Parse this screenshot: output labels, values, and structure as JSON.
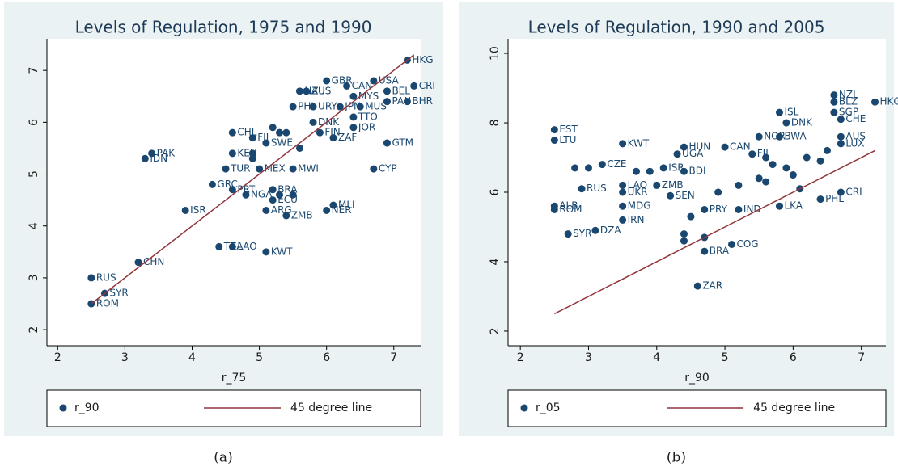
{
  "chart_data": [
    {
      "type": "scatter",
      "title": "Levels of Regulation, 1975 and 1990",
      "xlabel": "r_75",
      "caption": "(a)",
      "xlim": [
        1.84,
        7.4
      ],
      "ylim": [
        1.69,
        7.61
      ],
      "xticks": [
        2,
        3,
        4,
        5,
        6,
        7
      ],
      "yticks": [
        2,
        3,
        4,
        5,
        6,
        7
      ],
      "series": [
        {
          "name": "r_90",
          "color": "#1a476f",
          "x": [
            7.2,
            6.0,
            6.7,
            6.3,
            5.6,
            5.7,
            7.3,
            6.9,
            6.4,
            6.9,
            7.2,
            5.5,
            5.8,
            6.2,
            6.5,
            6.4,
            5.8,
            6.4,
            4.6,
            5.9,
            6.1,
            6.9,
            4.9,
            5.1,
            3.4,
            3.3,
            5.5,
            6.7,
            4.5,
            4.6,
            5.0,
            4.3,
            4.6,
            4.8,
            5.2,
            5.2,
            6.1,
            6.0,
            5.1,
            5.4,
            3.9,
            4.4,
            4.6,
            5.1,
            3.2,
            2.5,
            2.7,
            2.5,
            4.9,
            5.2,
            5.3,
            5.4,
            5.6,
            4.9,
            5.3,
            5.5
          ],
          "values": [
            7.2,
            6.8,
            6.8,
            6.7,
            6.6,
            6.6,
            6.7,
            6.6,
            6.5,
            6.4,
            6.4,
            6.3,
            6.3,
            6.3,
            6.3,
            6.1,
            6.0,
            5.9,
            5.8,
            5.8,
            5.7,
            5.6,
            5.7,
            5.6,
            5.4,
            5.3,
            5.1,
            5.1,
            5.1,
            5.4,
            5.1,
            4.8,
            4.7,
            4.6,
            4.7,
            4.5,
            4.4,
            4.3,
            4.3,
            4.2,
            4.3,
            3.6,
            3.6,
            3.5,
            3.3,
            3.0,
            2.7,
            2.5,
            5.4,
            5.9,
            5.8,
            5.8,
            5.5,
            5.3,
            4.6,
            4.6
          ],
          "labels": [
            "HKG",
            "GBR",
            "USA",
            "CAN",
            "NZL",
            "AUS",
            "CRI",
            "BEL",
            "MYS",
            "PAN",
            "BHR",
            "PHL",
            "URY",
            "JPN",
            "MUS",
            "TTO",
            "DNK",
            "JOR",
            "CHL",
            "FIN",
            "ZAF",
            "GTM",
            "FJI",
            "SWE",
            "PAK",
            "IDN",
            "MWI",
            "CYP",
            "TUR",
            "KEN",
            "MEX",
            "GRC",
            "PRT",
            "NGA",
            "BRA",
            "ECU",
            "MLI",
            "NER",
            "ARG",
            "ZMB",
            "ISR",
            "TZA",
            "LAO",
            "KWT",
            "CHN",
            "RUS",
            "SYR",
            "ROM",
            null,
            null,
            null,
            null,
            null,
            null,
            null,
            null
          ]
        },
        {
          "name": "45 degree line",
          "color": "#90353b",
          "x": [
            2.5,
            7.3
          ],
          "values": [
            2.5,
            7.3
          ]
        }
      ]
    },
    {
      "type": "scatter",
      "title": "Levels of Regulation, 1990 and 2005",
      "xlabel": "r_90",
      "caption": "(b)",
      "xlim": [
        1.82,
        7.36
      ],
      "ylim": [
        1.58,
        10.42
      ],
      "xticks": [
        2,
        3,
        4,
        5,
        6,
        7
      ],
      "yticks": [
        2,
        4,
        6,
        8,
        10
      ],
      "series": [
        {
          "name": "r_05",
          "color": "#1a476f",
          "x": [
            6.6,
            7.2,
            6.6,
            6.6,
            5.8,
            5.9,
            6.7,
            2.5,
            2.5,
            3.5,
            4.4,
            5.0,
            4.3,
            5.5,
            5.8,
            5.4,
            6.7,
            6.7,
            3.2,
            4.1,
            4.4,
            4.0,
            3.5,
            2.9,
            3.5,
            2.5,
            2.5,
            3.5,
            3.5,
            2.7,
            3.1,
            4.2,
            4.7,
            5.1,
            4.7,
            4.6,
            6.7,
            6.4,
            5.8,
            5.2,
            2.8,
            3.0,
            3.7,
            3.9,
            5.6,
            5.7,
            5.9,
            6.0,
            5.5,
            5.2,
            4.9,
            6.2,
            6.5,
            6.4,
            4.4,
            4.4,
            4.5,
            4.7,
            6.1,
            5.6
          ],
          "values": [
            8.8,
            8.6,
            8.6,
            8.3,
            8.3,
            8.0,
            8.1,
            7.8,
            7.5,
            7.4,
            7.3,
            7.3,
            7.1,
            7.6,
            7.6,
            7.1,
            7.6,
            7.4,
            6.8,
            6.7,
            6.6,
            6.2,
            6.2,
            6.1,
            6.0,
            5.6,
            5.5,
            5.6,
            5.2,
            4.8,
            4.9,
            5.9,
            5.5,
            4.5,
            4.3,
            3.3,
            6.0,
            5.8,
            5.6,
            5.5,
            6.7,
            6.7,
            6.6,
            6.6,
            7.0,
            6.8,
            6.7,
            6.5,
            6.4,
            6.2,
            6.0,
            7.0,
            7.2,
            6.9,
            4.8,
            4.6,
            5.3,
            4.7,
            6.1,
            6.3
          ],
          "labels": [
            "NZL",
            "HKG",
            "BLZ",
            "SGP",
            "ISL",
            "DNK",
            "CHE",
            "EST",
            "LTU",
            "KWT",
            "HUN",
            "CAN",
            "UGA",
            "NOR",
            "BWA",
            "FJI",
            "AUS",
            "LUX",
            "CZE",
            "ISR",
            "BDI",
            "ZMB",
            "LAO",
            "RUS",
            "UKR",
            "ALB",
            "ROM",
            "MDG",
            "IRN",
            "SYR",
            "DZA",
            "SEN",
            "PRY",
            "COG",
            "BRA",
            "ZAR",
            "CRI",
            "PHL",
            "LKA",
            "IND",
            null,
            null,
            null,
            null,
            null,
            null,
            null,
            null,
            null,
            null,
            null,
            null,
            null,
            null,
            null,
            null,
            null,
            null,
            null,
            null
          ]
        },
        {
          "name": "45 degree line",
          "color": "#90353b",
          "x": [
            2.5,
            7.2
          ],
          "values": [
            2.5,
            7.2
          ]
        }
      ]
    }
  ]
}
